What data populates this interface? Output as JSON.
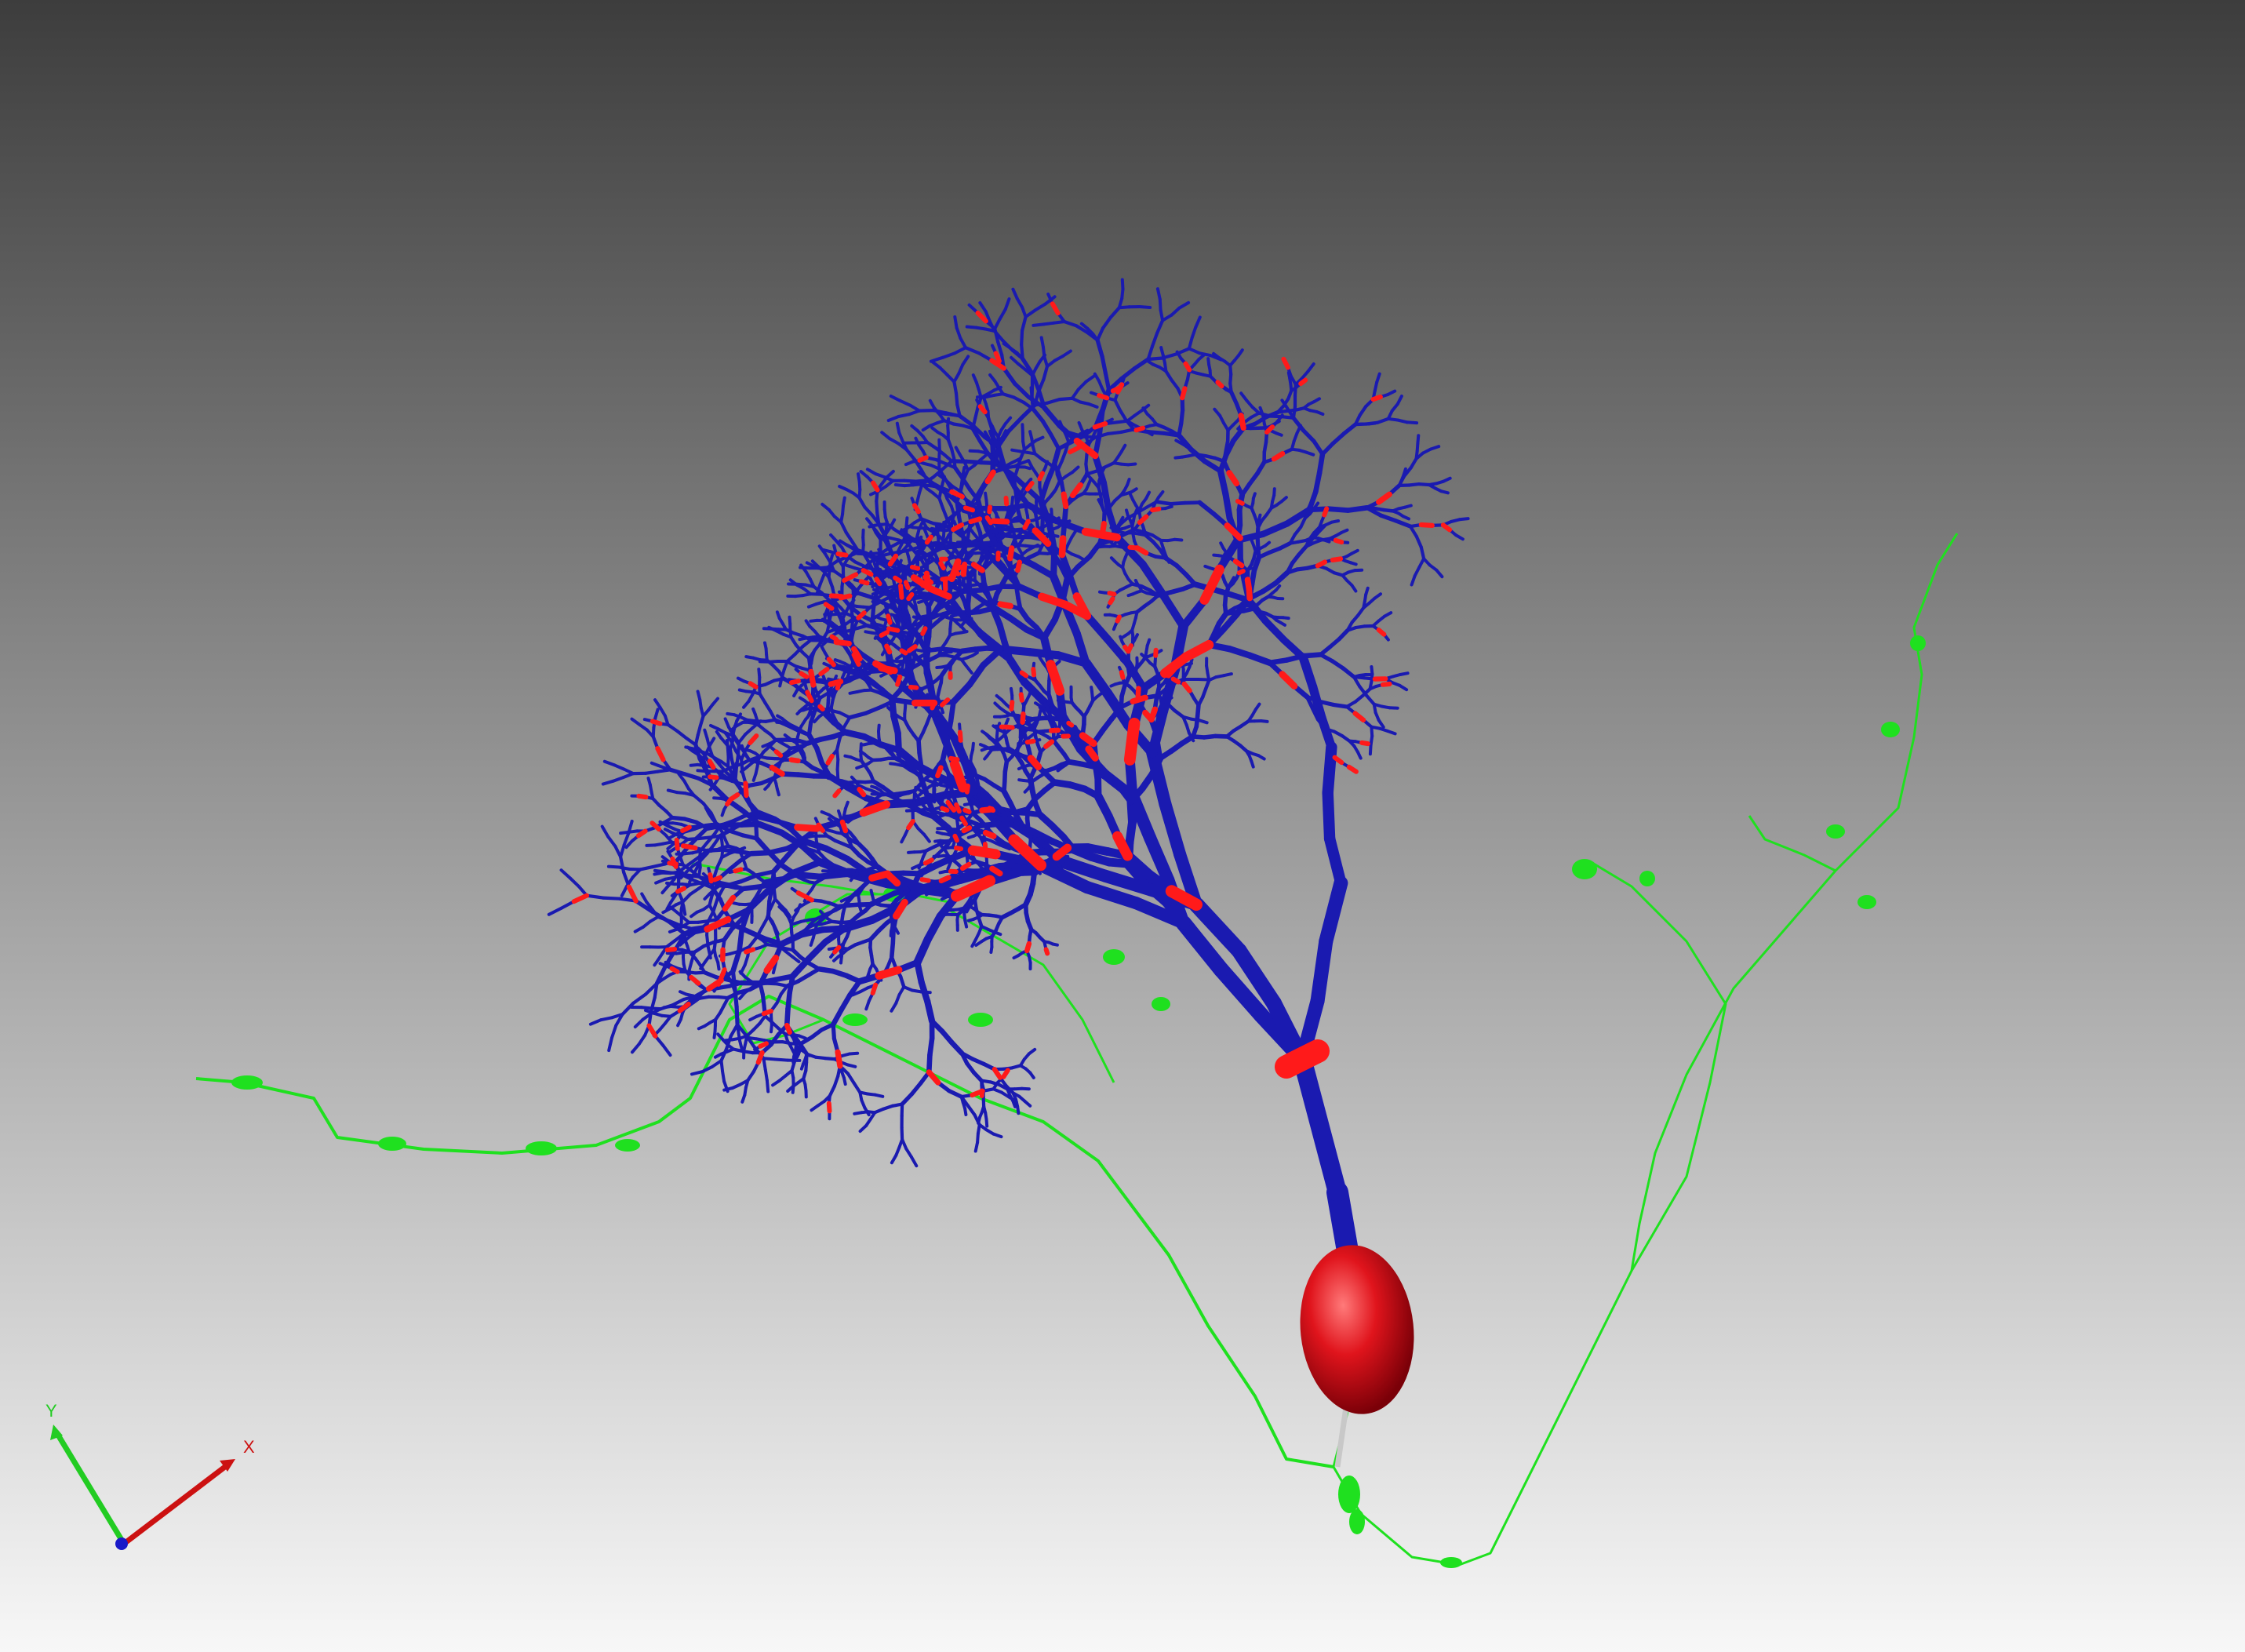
{
  "viewer": {
    "background_top": "#3d3d3d",
    "background_bottom": "#f7f7f7"
  },
  "neuron": {
    "soma_color": "#e0141c",
    "dendrite_color": "#1a1ab0",
    "highlight_color": "#ff1a1a",
    "axon_color": "#1fe01f"
  },
  "axes": {
    "x_label": "X",
    "y_label": "Y",
    "x_color": "#cc1111",
    "y_color": "#22cc22",
    "z_color": "#1a1ac8"
  }
}
